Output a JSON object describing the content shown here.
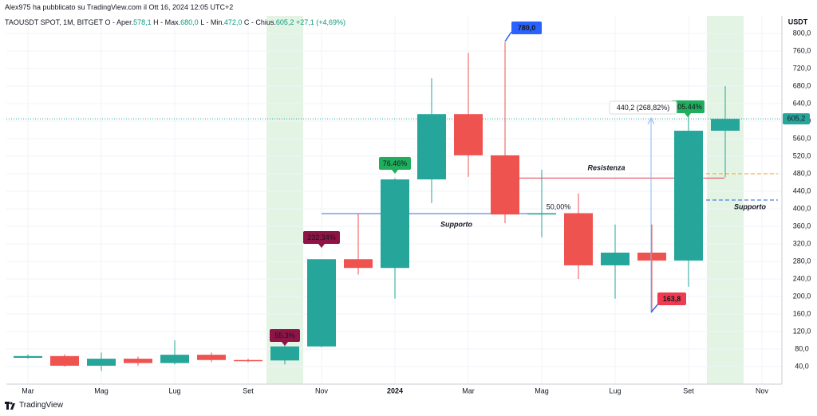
{
  "header": {
    "publisher": "Alex975 ha pubblicato su TradingView.com il Ott 16, 2024 12:05 UTC+2",
    "symbol": "TAOUSDT SPOT, 1M, BITGET",
    "open_label": "O - Aper.",
    "open": "578,1",
    "high_label": "H - Max.",
    "high": "680,0",
    "low_label": "L - Min.",
    "low": "472,0",
    "close_label": "C - Chius.",
    "close": "605,2",
    "change": "+27,1 (+4,69%)"
  },
  "footer": {
    "brand": "TradingView"
  },
  "chart_data": {
    "type": "candlestick",
    "y_axis_label": "USDT",
    "categories": [
      "Mar",
      null,
      "Mag",
      null,
      "Lug",
      null,
      "Set",
      null,
      "Nov",
      null,
      "2024",
      null,
      "Mar",
      null,
      "Mag",
      null,
      "Lug",
      null,
      "Set",
      null,
      "Nov"
    ],
    "up_color": "#26a69a",
    "down_color": "#ef5350",
    "series": [
      {
        "name": "open",
        "values": [
          60,
          64,
          42,
          58,
          48,
          67,
          55,
          54,
          86,
          285,
          265,
          467,
          616,
          522,
          387,
          390,
          271,
          300,
          282,
          578.1,
          null
        ]
      },
      {
        "name": "high",
        "values": [
          68,
          68,
          72,
          63,
          100,
          72,
          58,
          104,
          285,
          390,
          470,
          698,
          756,
          780,
          489,
          435,
          364,
          364,
          622,
          680,
          null
        ]
      },
      {
        "name": "low",
        "values": [
          58,
          40,
          30,
          42,
          45,
          50,
          50,
          45,
          84,
          250,
          195,
          413,
          473,
          367,
          335,
          240,
          195,
          163.8,
          222,
          472,
          null
        ]
      },
      {
        "name": "close",
        "values": [
          64,
          42,
          58,
          48,
          67,
          55,
          54,
          86,
          285,
          265,
          467,
          616,
          522,
          387,
          390,
          271,
          300,
          282,
          578.1,
          605.2,
          null
        ]
      }
    ],
    "ylim": [
      0,
      840
    ],
    "yticks": [
      {
        "value": 40,
        "label": "40,0"
      },
      {
        "value": 80,
        "label": "80,0"
      },
      {
        "value": 120,
        "label": "120,0"
      },
      {
        "value": 160,
        "label": "160,0"
      },
      {
        "value": 200,
        "label": "200,0"
      },
      {
        "value": 240,
        "label": "240,0"
      },
      {
        "value": 280,
        "label": "280,0"
      },
      {
        "value": 320,
        "label": "320,0"
      },
      {
        "value": 360,
        "label": "360,0"
      },
      {
        "value": 400,
        "label": "400,0"
      },
      {
        "value": 440,
        "label": "440,0"
      },
      {
        "value": 480,
        "label": "480,0"
      },
      {
        "value": 520,
        "label": "520,0"
      },
      {
        "value": 560,
        "label": "560,0"
      },
      {
        "value": 600,
        "label": "600,0"
      },
      {
        "value": 640,
        "label": "640,0"
      },
      {
        "value": 680,
        "label": "680,0"
      },
      {
        "value": 720,
        "label": "720,0"
      },
      {
        "value": 760,
        "label": "760,0"
      },
      {
        "value": 800,
        "label": "800,0"
      }
    ],
    "last_price": {
      "value": 605.2,
      "label": "605,2"
    },
    "grid": true,
    "levels": [
      {
        "value": 389,
        "color": "#4a7de0"
      },
      {
        "value": 470,
        "color": "#e85a6a"
      },
      {
        "value": 480,
        "color": "#f5b041"
      },
      {
        "value": 420,
        "color": "#4a7de0"
      }
    ],
    "annotations": [
      "55.3%",
      "232.34%",
      "76.46%",
      "105.44%",
      "780,0",
      "163,8",
      "Resistenza",
      "Supporto",
      "Supporto",
      "50,00%",
      "440,2 (268,82%)"
    ]
  }
}
